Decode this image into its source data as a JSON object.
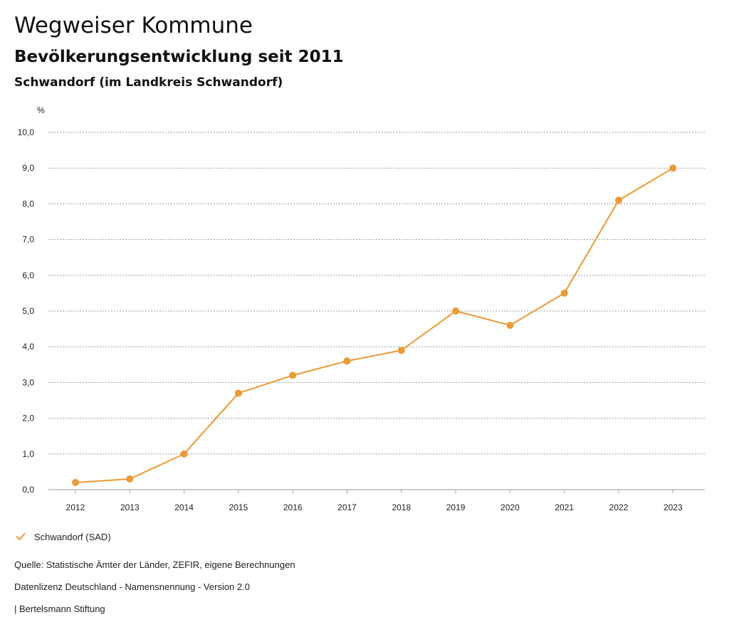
{
  "header": {
    "title": "Wegweiser Kommune",
    "subtitle": "Bevölkerungsentwicklung seit 2011",
    "region": "Schwandorf (im Landkreis Schwandorf)"
  },
  "chart_data": {
    "type": "line",
    "unit_label": "%",
    "x": [
      "2012",
      "2013",
      "2014",
      "2015",
      "2016",
      "2017",
      "2018",
      "2019",
      "2020",
      "2021",
      "2022",
      "2023"
    ],
    "series": [
      {
        "name": "Schwandorf (SAD)",
        "values": [
          0.2,
          0.3,
          1.0,
          2.7,
          3.2,
          3.6,
          3.9,
          5.0,
          4.6,
          5.5,
          8.1,
          9.0
        ]
      }
    ],
    "y_ticks": [
      0,
      1,
      2,
      3,
      4,
      5,
      6,
      7,
      8,
      9,
      10
    ],
    "ylim": [
      0,
      10
    ],
    "grid": true,
    "legend_position": "bottom-left",
    "color": "#ec9a35"
  },
  "footer": {
    "source": "Quelle: Statistische Ämter der Länder, ZEFIR, eigene Berechnungen",
    "license": "Datenlizenz Deutschland - Namensnennung - Version 2.0",
    "publisher": "| Bertelsmann Stiftung"
  }
}
